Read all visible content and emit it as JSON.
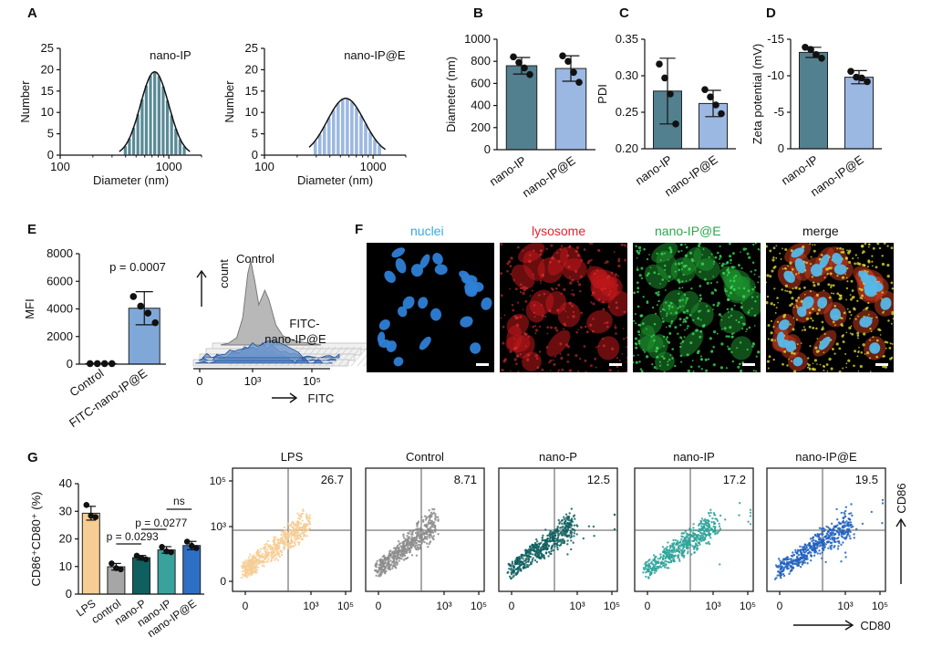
{
  "panels": {
    "A": "A",
    "B": "B",
    "C": "C",
    "D": "D",
    "E": "E",
    "F": "F",
    "G": "G"
  },
  "colors": {
    "nano_ip": "#52808f",
    "nano_ip_e": "#9bb8e2",
    "hist_ip": "#5a8a97",
    "hist_ip_e": "#9bb8e0",
    "lps": "#f6cd93",
    "control": "#a6a6a6",
    "nano_p": "#0f5f5f",
    "g_nano_ip": "#3aa29c",
    "g_nano_ip_e": "#2d6fc4"
  },
  "chart_data": [
    {
      "id": "A1",
      "type": "bar",
      "title": "nano-IP",
      "xlabel": "Diameter (nm)",
      "ylabel": "Number",
      "xscale": "log",
      "xlim": [
        100,
        2000
      ],
      "ylim": [
        0,
        25
      ],
      "xticks": [
        "100",
        "1000"
      ],
      "yticks": [
        "0",
        "5",
        "10",
        "15",
        "20",
        "25"
      ],
      "fit": {
        "center": 740,
        "sigma_log10": 0.13,
        "peak": 19.5
      },
      "bins_from": 380,
      "bins_to": 1450
    },
    {
      "id": "A2",
      "type": "bar",
      "title": "nano-IP@E",
      "xlabel": "Diameter (nm)",
      "ylabel": "Number",
      "xscale": "log",
      "xlim": [
        100,
        2000
      ],
      "ylim": [
        0,
        25
      ],
      "xticks": [
        "100",
        "1000"
      ],
      "yticks": [
        "0",
        "5",
        "10",
        "15",
        "20",
        "25"
      ],
      "fit": {
        "center": 560,
        "sigma_log10": 0.17,
        "peak": 13.3
      },
      "bins_from": 280,
      "bins_to": 1200
    },
    {
      "id": "B",
      "type": "bar",
      "ylabel": "Diameter (nm)",
      "ylim": [
        0,
        1000
      ],
      "yticks": [
        "0",
        "200",
        "400",
        "600",
        "800",
        "1000"
      ],
      "categories": [
        "nano-IP",
        "nano-IP@E"
      ],
      "values": [
        760,
        735
      ],
      "errors": [
        75,
        115
      ],
      "points": [
        [
          840,
          790,
          740,
          680
        ],
        [
          850,
          800,
          700,
          610
        ]
      ]
    },
    {
      "id": "C",
      "type": "bar",
      "ylabel": "PDI",
      "ylim": [
        0.2,
        0.35
      ],
      "yticks": [
        "0.20",
        "0.25",
        "0.30",
        "0.35"
      ],
      "categories": [
        "nano-IP",
        "nano-IP@E"
      ],
      "values": [
        0.279,
        0.262
      ],
      "errors": [
        0.045,
        0.018
      ],
      "points": [
        [
          0.316,
          0.297,
          0.275,
          0.234
        ],
        [
          0.281,
          0.271,
          0.26,
          0.248
        ]
      ]
    },
    {
      "id": "D",
      "type": "bar",
      "ylabel": "Zeta potential (mV)",
      "ylim": [
        0,
        -15
      ],
      "yticks": [
        "0",
        "-5",
        "-10",
        "-15"
      ],
      "categories": [
        "nano-IP",
        "nano-IP@E"
      ],
      "values": [
        -13.2,
        -9.8
      ],
      "errors": [
        0.7,
        0.9
      ],
      "points": [
        [
          -13.9,
          -13.6,
          -12.9,
          -12.4
        ],
        [
          -10.6,
          -9.8,
          -9.7,
          -9.2
        ]
      ]
    },
    {
      "id": "E",
      "type": "bar",
      "ylabel": "MFI",
      "ylim": [
        0,
        8000
      ],
      "yticks": [
        "0",
        "2000",
        "4000",
        "6000",
        "8000"
      ],
      "categories": [
        "Control",
        "FITC-nano-IP@E"
      ],
      "values": [
        40,
        4050
      ],
      "errors": [
        20,
        1200
      ],
      "points": [
        [
          40,
          40,
          40,
          40
        ],
        [
          4900,
          4200,
          3700,
          3000
        ]
      ],
      "annotation": "p = 0.0007"
    },
    {
      "id": "E_hist",
      "type": "area",
      "xlabel": "FITC",
      "ylabel": "count",
      "xticks": [
        "0",
        "10³",
        "10⁵"
      ],
      "series": [
        {
          "name": "Control"
        },
        {
          "name": "FITC-nano-IP@E"
        }
      ],
      "labels": {
        "control": "Control",
        "fitc1": "FITC-",
        "fitc2": "nano-IP@E"
      }
    },
    {
      "id": "G",
      "type": "bar",
      "ylabel": "CD86⁺CD80⁺ (%)",
      "ylim": [
        0,
        40
      ],
      "yticks": [
        "0",
        "10",
        "20",
        "30",
        "40"
      ],
      "categories": [
        "LPS",
        "control",
        "nano-P",
        "nano-IP",
        "nano-IP@E"
      ],
      "values": [
        29.3,
        9.9,
        13.2,
        16.0,
        17.6
      ],
      "errors": [
        2.5,
        1.2,
        0.8,
        1.2,
        1.5
      ],
      "points": [
        [
          32.3,
          28.4,
          27.9
        ],
        [
          11.1,
          9.4,
          9.0
        ],
        [
          13.9,
          13.1,
          12.6
        ],
        [
          17.1,
          15.5,
          15.2
        ],
        [
          19.0,
          17.5,
          16.7
        ]
      ],
      "annotations": [
        "p = 0.0293",
        "p = 0.0277",
        "ns"
      ]
    },
    {
      "id": "G_flow",
      "type": "scatter",
      "xlabel": "CD80",
      "ylabel": "CD86",
      "xticks": [
        "0",
        "10³",
        "10⁵"
      ],
      "yticks": [
        "0",
        "10³",
        "10⁵"
      ],
      "plots": [
        {
          "title": "LPS",
          "value": "26.7",
          "color": "#f6cd93"
        },
        {
          "title": "Control",
          "value": "8.71",
          "color": "#8c8c8c"
        },
        {
          "title": "nano-P",
          "value": "12.5",
          "color": "#0f5f5f"
        },
        {
          "title": "nano-IP",
          "value": "17.2",
          "color": "#2ea39a"
        },
        {
          "title": "nano-IP@E",
          "value": "19.5",
          "color": "#2060bd"
        }
      ]
    }
  ],
  "microscopy": {
    "channels": [
      "nuclei",
      "lysosome",
      "nano-IP@E",
      "merge"
    ],
    "label_colors": [
      "#36a9e1",
      "#e5232e",
      "#2aa84a",
      "#111111"
    ]
  }
}
